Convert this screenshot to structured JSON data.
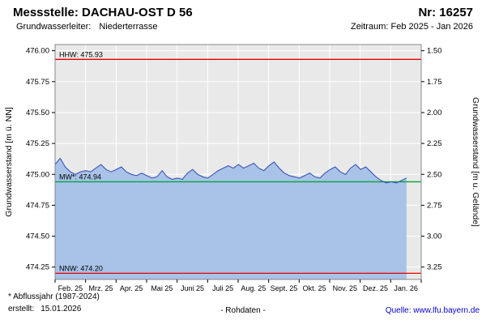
{
  "header": {
    "title": "Messstelle: DACHAU-OST D 56",
    "number": "Nr: 16257",
    "aquifer_label": "Grundwasserleiter:",
    "aquifer_value": "Niederterrasse",
    "period": "Zeitraum: Feb 2025 - Jan 2026"
  },
  "footer": {
    "note": "* Abflussjahr (1987-2024)",
    "created_label": "erstellt:",
    "created_date": "15.01.2026",
    "center": "- Rohdaten -",
    "source_text": "Quelle: www.lfu.bayern.de"
  },
  "colors": {
    "line": "#3a56b5",
    "area_fill": "#a9c2e8",
    "plot_bg": "#e9e9e9",
    "grid": "#ffffff",
    "border": "#888888",
    "axis": "#000000",
    "link": "#0000cc"
  },
  "chart_data": {
    "type": "area",
    "title": "",
    "xlabel": "",
    "ylabel_left": "Grundwasserstand [m ü. NN]",
    "ylabel_right": "Grundwasserstand [m u. Gelände]",
    "x_tick_labels": [
      "Feb. 25",
      "Mrz. 25",
      "Apr. 25",
      "Mai 25",
      "Juni 25",
      "Juli 25",
      "Aug. 25",
      "Sept. 25",
      "Okt. 25",
      "Nov. 25",
      "Dez. 25",
      "Jan. 26"
    ],
    "ylim_left": [
      474.15,
      476.05
    ],
    "y_ticks_left": [
      476.0,
      475.75,
      475.5,
      475.25,
      475.0,
      474.75,
      474.5,
      474.25
    ],
    "y_tick_labels_left": [
      "476.00",
      "475.75",
      "475.50",
      "475.25",
      "475.00",
      "474.75",
      "474.50",
      "474.25"
    ],
    "y_tick_labels_right": [
      "1.50",
      "1.75",
      "2.00",
      "2.25",
      "2.50",
      "2.75",
      "3.00",
      "3.25"
    ],
    "grid": true,
    "legend": "none",
    "reference_lines": [
      {
        "name": "HHW",
        "label": "HHW: 475.93",
        "value": 475.93,
        "color": "#e60000"
      },
      {
        "name": "MW",
        "label": "MW*: 474.94",
        "value": 474.94,
        "color": "#00a33c"
      },
      {
        "name": "NNW",
        "label": "NNW: 474.20",
        "value": 474.2,
        "color": "#e60000"
      }
    ],
    "series": [
      {
        "name": "Grundwasserstand (Rohdaten)",
        "x_fraction_range": [
          0,
          0.96
        ],
        "values": [
          475.08,
          475.13,
          475.06,
          475.02,
          475.0,
          475.02,
          475.03,
          475.02,
          475.05,
          475.08,
          475.04,
          475.02,
          475.04,
          475.06,
          475.02,
          475.0,
          474.99,
          475.01,
          474.99,
          474.97,
          474.98,
          475.03,
          474.98,
          474.96,
          474.97,
          474.96,
          475.01,
          475.04,
          475.0,
          474.98,
          474.97,
          475.0,
          475.03,
          475.05,
          475.07,
          475.05,
          475.08,
          475.05,
          475.07,
          475.09,
          475.05,
          475.03,
          475.07,
          475.1,
          475.05,
          475.01,
          474.99,
          474.98,
          474.97,
          474.99,
          475.01,
          474.98,
          474.97,
          475.01,
          475.04,
          475.06,
          475.02,
          475.0,
          475.05,
          475.08,
          475.04,
          475.06,
          475.02,
          474.98,
          474.95,
          474.93,
          474.94,
          474.93,
          474.95,
          474.97
        ]
      }
    ]
  }
}
